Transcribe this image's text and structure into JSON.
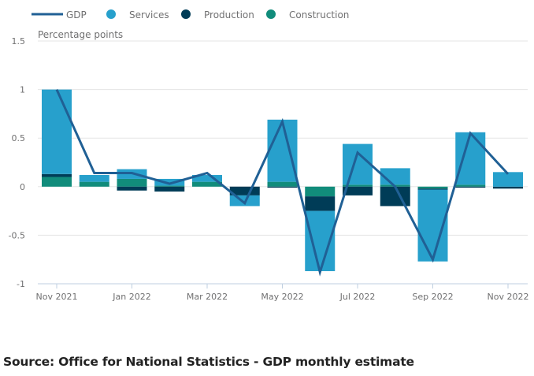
{
  "chart_data": {
    "type": "bar",
    "stacked": true,
    "title": "",
    "ylabel": "Percentage points",
    "xlabel": "",
    "ylim": [
      -1,
      1.5
    ],
    "yticks": [
      1.5,
      1,
      0.5,
      0,
      -0.5,
      -1
    ],
    "ytick_labels": [
      "1.5",
      "1",
      "0.5",
      "0",
      "-0.5",
      "-1"
    ],
    "grid": true,
    "legend_position": "top",
    "categories": [
      "Nov 2021",
      "Dec 2021",
      "Jan 2022",
      "Feb 2022",
      "Mar 2022",
      "Apr 2022",
      "May 2022",
      "Jun 2022",
      "Jul 2022",
      "Aug 2022",
      "Sep 2022",
      "Oct 2022",
      "Nov 2022"
    ],
    "xtick_labels": [
      "Nov 2021",
      "Jan 2022",
      "Mar 2022",
      "May 2022",
      "Jul 2022",
      "Sep 2022",
      "Nov 2022"
    ],
    "xtick_indices": [
      0,
      2,
      4,
      6,
      8,
      10,
      12
    ],
    "series": [
      {
        "name": "Construction",
        "kind": "bar",
        "color": "#118c7b",
        "values": [
          0.1,
          0.05,
          0.08,
          0.01,
          0.05,
          0.0,
          0.05,
          -0.1,
          0.02,
          0.02,
          -0.02,
          0.02,
          0.0
        ]
      },
      {
        "name": "Production",
        "kind": "bar",
        "color": "#003c57",
        "values": [
          0.03,
          0.0,
          -0.04,
          -0.05,
          0.0,
          -0.09,
          -0.01,
          -0.15,
          -0.09,
          -0.2,
          -0.01,
          -0.01,
          -0.02
        ]
      },
      {
        "name": "Services",
        "kind": "bar",
        "color": "#27a0cc",
        "values": [
          0.87,
          0.07,
          0.1,
          0.07,
          0.07,
          -0.11,
          0.64,
          -0.62,
          0.42,
          0.17,
          -0.74,
          0.54,
          0.15
        ]
      },
      {
        "name": "GDP",
        "kind": "line",
        "color": "#206095",
        "values": [
          1.0,
          0.14,
          0.14,
          0.03,
          0.14,
          -0.17,
          0.67,
          -0.88,
          0.35,
          0.0,
          -0.75,
          0.55,
          0.13
        ]
      }
    ],
    "legend": [
      {
        "name": "GDP",
        "symbol": "line",
        "color": "#206095"
      },
      {
        "name": "Services",
        "symbol": "circle",
        "color": "#27a0cc"
      },
      {
        "name": "Production",
        "symbol": "circle",
        "color": "#003c57"
      },
      {
        "name": "Construction",
        "symbol": "circle",
        "color": "#118c7b"
      }
    ]
  },
  "source": "Source: Office for National Statistics - GDP monthly estimate"
}
